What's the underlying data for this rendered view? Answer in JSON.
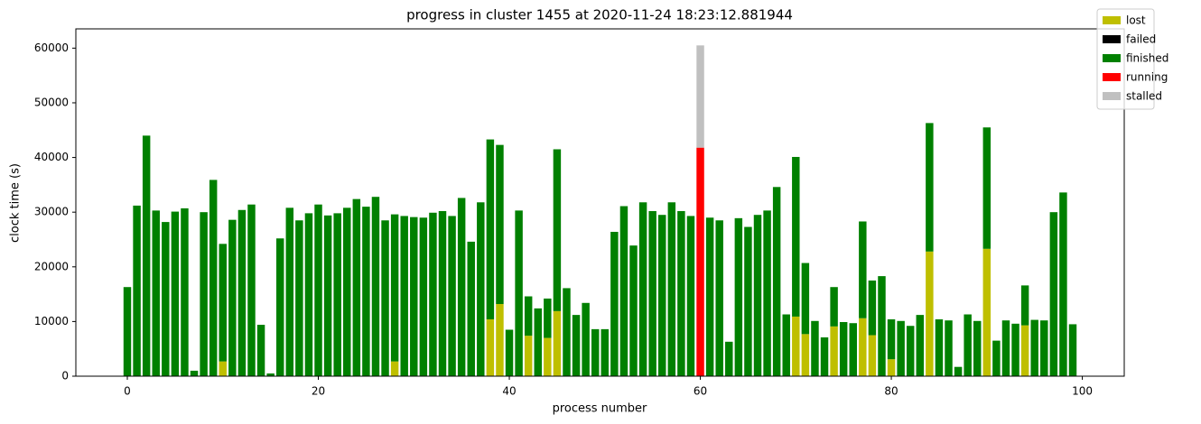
{
  "chart_data": {
    "type": "bar",
    "stacked": true,
    "title": "progress in cluster 1455 at 2020-11-24 18:23:12.881944",
    "xlabel": "process number",
    "ylabel": "clock time (s)",
    "x": [
      0,
      1,
      2,
      3,
      4,
      5,
      6,
      7,
      8,
      9,
      10,
      11,
      12,
      13,
      14,
      15,
      16,
      17,
      18,
      19,
      20,
      21,
      22,
      23,
      24,
      25,
      26,
      27,
      28,
      29,
      30,
      31,
      32,
      33,
      34,
      35,
      36,
      37,
      38,
      39,
      40,
      41,
      42,
      43,
      44,
      45,
      46,
      47,
      48,
      49,
      50,
      51,
      52,
      53,
      54,
      55,
      56,
      57,
      58,
      59,
      60,
      61,
      62,
      63,
      64,
      65,
      66,
      67,
      68,
      69,
      70,
      71,
      72,
      73,
      74,
      75,
      76,
      77,
      78,
      79,
      80,
      81,
      82,
      83,
      84,
      85,
      86,
      87,
      88,
      89,
      90,
      91,
      92,
      93,
      94,
      95,
      96,
      97,
      98,
      99
    ],
    "series": [
      {
        "name": "lost",
        "color": "#bfbf00",
        "values": [
          0,
          0,
          0,
          0,
          0,
          0,
          0,
          0,
          0,
          0,
          2700,
          0,
          0,
          0,
          0,
          0,
          0,
          0,
          0,
          0,
          0,
          0,
          0,
          0,
          0,
          0,
          0,
          0,
          2700,
          0,
          0,
          0,
          0,
          0,
          0,
          0,
          0,
          0,
          10400,
          13200,
          0,
          0,
          7400,
          0,
          7000,
          11900,
          0,
          0,
          0,
          0,
          0,
          0,
          0,
          0,
          0,
          0,
          0,
          0,
          0,
          0,
          0,
          0,
          0,
          0,
          0,
          0,
          0,
          0,
          0,
          0,
          10900,
          7700,
          0,
          0,
          9100,
          0,
          0,
          10600,
          7500,
          0,
          3100,
          0,
          0,
          0,
          22800,
          0,
          0,
          0,
          0,
          0,
          23300,
          0,
          0,
          0,
          9300,
          0,
          0,
          0,
          0,
          0
        ]
      },
      {
        "name": "failed",
        "color": "#000000",
        "values": [
          0,
          0,
          0,
          0,
          0,
          0,
          0,
          0,
          0,
          0,
          0,
          0,
          0,
          0,
          0,
          0,
          0,
          0,
          0,
          0,
          0,
          0,
          0,
          0,
          0,
          0,
          0,
          0,
          0,
          0,
          0,
          0,
          0,
          0,
          0,
          0,
          0,
          0,
          0,
          0,
          0,
          0,
          0,
          0,
          0,
          0,
          0,
          0,
          0,
          0,
          0,
          0,
          0,
          0,
          0,
          0,
          0,
          0,
          0,
          0,
          0,
          0,
          0,
          0,
          0,
          0,
          0,
          0,
          0,
          0,
          0,
          0,
          0,
          0,
          0,
          0,
          0,
          0,
          0,
          0,
          0,
          0,
          0,
          0,
          0,
          0,
          0,
          0,
          0,
          0,
          0,
          0,
          0,
          0,
          0,
          0,
          0,
          0,
          0,
          0
        ]
      },
      {
        "name": "finished",
        "color": "#008000",
        "values": [
          16300,
          31200,
          44000,
          30300,
          28200,
          30100,
          30700,
          1000,
          30000,
          35900,
          21500,
          28600,
          30400,
          31400,
          9400,
          500,
          25200,
          30800,
          28500,
          29800,
          31400,
          29400,
          29800,
          30800,
          32400,
          31000,
          32800,
          28500,
          26900,
          29300,
          29100,
          29000,
          29900,
          30200,
          29300,
          32600,
          24600,
          31800,
          32900,
          29100,
          8500,
          30300,
          7200,
          12400,
          7200,
          29600,
          16100,
          11200,
          13400,
          8600,
          8600,
          26400,
          31100,
          23900,
          31800,
          30200,
          29500,
          31800,
          30200,
          29300,
          0,
          29000,
          28500,
          6300,
          28900,
          27300,
          29500,
          30300,
          34600,
          11300,
          29200,
          13000,
          10100,
          7100,
          7200,
          9900,
          9700,
          17700,
          10000,
          18300,
          7300,
          10100,
          9200,
          11200,
          23500,
          10400,
          10200,
          1700,
          11300,
          10100,
          22200,
          6500,
          10200,
          9600,
          7300,
          10300,
          10200,
          30000,
          33600,
          9500
        ]
      },
      {
        "name": "running",
        "color": "#ff0000",
        "values": [
          0,
          0,
          0,
          0,
          0,
          0,
          0,
          0,
          0,
          0,
          0,
          0,
          0,
          0,
          0,
          0,
          0,
          0,
          0,
          0,
          0,
          0,
          0,
          0,
          0,
          0,
          0,
          0,
          0,
          0,
          0,
          0,
          0,
          0,
          0,
          0,
          0,
          0,
          0,
          0,
          0,
          0,
          0,
          0,
          0,
          0,
          0,
          0,
          0,
          0,
          0,
          0,
          0,
          0,
          0,
          0,
          0,
          0,
          0,
          0,
          41800,
          0,
          0,
          0,
          0,
          0,
          0,
          0,
          0,
          0,
          0,
          0,
          0,
          0,
          0,
          0,
          0,
          0,
          0,
          0,
          0,
          0,
          0,
          0,
          0,
          0,
          0,
          0,
          0,
          0,
          0,
          0,
          0,
          0,
          0,
          0,
          0,
          0,
          0,
          0
        ]
      },
      {
        "name": "stalled",
        "color": "#c0c0c0",
        "values": [
          0,
          0,
          0,
          0,
          0,
          0,
          0,
          0,
          0,
          0,
          0,
          0,
          0,
          0,
          0,
          0,
          0,
          0,
          0,
          0,
          0,
          0,
          0,
          0,
          0,
          0,
          0,
          0,
          0,
          0,
          0,
          0,
          0,
          0,
          0,
          0,
          0,
          0,
          0,
          0,
          0,
          0,
          0,
          0,
          0,
          0,
          0,
          0,
          0,
          0,
          0,
          0,
          0,
          0,
          0,
          0,
          0,
          0,
          0,
          0,
          18700,
          0,
          0,
          0,
          0,
          0,
          0,
          0,
          0,
          0,
          0,
          0,
          0,
          0,
          0,
          0,
          0,
          0,
          0,
          0,
          0,
          0,
          0,
          0,
          0,
          0,
          0,
          0,
          0,
          0,
          0,
          0,
          0,
          0,
          0,
          0,
          0,
          0,
          0,
          0
        ]
      }
    ],
    "xlim": [
      -5.39,
      104.39
    ],
    "xticks": [
      0,
      20,
      40,
      60,
      80,
      100
    ],
    "ylim": [
      0,
      63525
    ],
    "yticks": [
      0,
      10000,
      20000,
      30000,
      40000,
      50000,
      60000
    ],
    "legend": "upper right"
  }
}
